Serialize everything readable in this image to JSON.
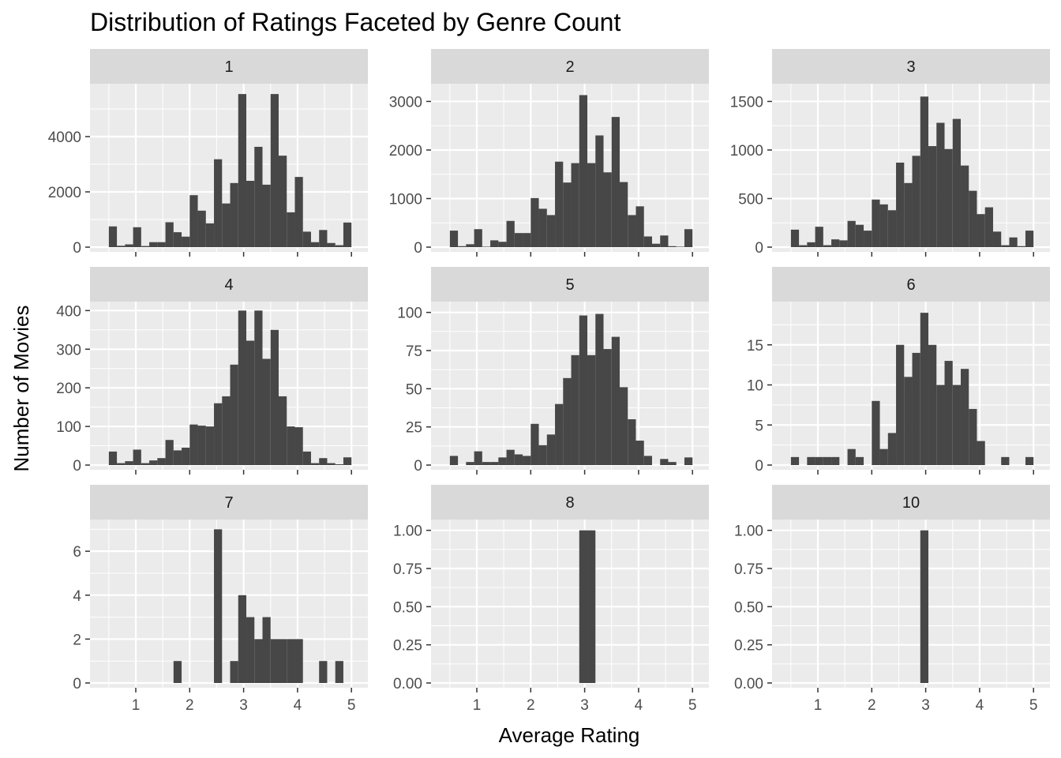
{
  "chart_data": {
    "type": "bar",
    "title": "Distribution of Ratings Faceted by Genre Count",
    "xlabel": "Average Rating",
    "ylabel": "Number of Movies",
    "xlim": [
      0.5,
      5.0
    ],
    "x_ticks": [
      1,
      2,
      3,
      4,
      5
    ],
    "grid": true,
    "facet_variable": "Genre Count",
    "bins": [
      0.5,
      0.65,
      0.8,
      0.95,
      1.1,
      1.25,
      1.4,
      1.55,
      1.7,
      1.85,
      2.0,
      2.15,
      2.3,
      2.45,
      2.6,
      2.75,
      2.9,
      3.05,
      3.2,
      3.35,
      3.5,
      3.65,
      3.8,
      3.95,
      4.1,
      4.25,
      4.4,
      4.55,
      4.7,
      4.85,
      5.0
    ],
    "panels": [
      {
        "label": "1",
        "ylim": [
          0,
          5800
        ],
        "y_ticks": [
          0,
          2000,
          4000
        ],
        "y_tick_labels": [
          "0",
          "2000",
          "4000"
        ],
        "values": [
          750,
          50,
          100,
          720,
          40,
          180,
          180,
          900,
          540,
          380,
          1880,
          1320,
          860,
          3180,
          1580,
          2320,
          5540,
          2400,
          3630,
          2260,
          5540,
          3310,
          1260,
          2540,
          560,
          180,
          620,
          150,
          70,
          890
        ]
      },
      {
        "label": "2",
        "ylim": [
          0,
          3300
        ],
        "y_ticks": [
          0,
          1000,
          2000,
          3000
        ],
        "y_tick_labels": [
          "0",
          "1000",
          "2000",
          "3000"
        ],
        "values": [
          340,
          20,
          60,
          370,
          10,
          140,
          110,
          540,
          290,
          290,
          1010,
          790,
          660,
          1760,
          1330,
          1730,
          3130,
          1730,
          2300,
          1540,
          2680,
          1340,
          660,
          840,
          220,
          70,
          240,
          20,
          10,
          370
        ]
      },
      {
        "label": "3",
        "ylim": [
          0,
          1650
        ],
        "y_ticks": [
          0,
          500,
          1000,
          1500
        ],
        "y_tick_labels": [
          "0",
          "500",
          "1000",
          "1500"
        ],
        "values": [
          180,
          20,
          50,
          210,
          20,
          80,
          70,
          270,
          230,
          170,
          490,
          440,
          380,
          870,
          660,
          940,
          1550,
          1040,
          1280,
          1010,
          1320,
          840,
          580,
          340,
          410,
          160,
          20,
          100,
          10,
          170
        ]
      },
      {
        "label": "4",
        "ylim": [
          0,
          415
        ],
        "y_ticks": [
          0,
          100,
          200,
          300,
          400
        ],
        "y_tick_labels": [
          "0",
          "100",
          "200",
          "300",
          "400"
        ],
        "values": [
          35,
          5,
          10,
          40,
          5,
          12,
          18,
          65,
          38,
          45,
          105,
          102,
          100,
          160,
          178,
          260,
          400,
          322,
          400,
          275,
          350,
          178,
          100,
          98,
          35,
          5,
          18,
          5,
          2,
          20
        ]
      },
      {
        "label": "5",
        "ylim": [
          0,
          105
        ],
        "y_ticks": [
          0,
          25,
          50,
          75,
          100
        ],
        "y_tick_labels": [
          "0",
          "25",
          "50",
          "75",
          "100"
        ],
        "values": [
          6,
          0,
          2,
          9,
          2,
          2,
          5,
          10,
          7,
          6,
          27,
          13,
          20,
          40,
          57,
          72,
          98,
          72,
          99,
          76,
          84,
          51,
          30,
          16,
          6,
          0,
          4,
          2,
          0,
          5
        ]
      },
      {
        "label": "6",
        "ylim": [
          0,
          20
        ],
        "y_ticks": [
          0,
          5,
          10,
          15
        ],
        "y_tick_labels": [
          "0",
          "5",
          "10",
          "15"
        ],
        "values": [
          1,
          0,
          1,
          1,
          1,
          1,
          0,
          2,
          1,
          0,
          8,
          2,
          4,
          15,
          11,
          14,
          19,
          15,
          10,
          13,
          10,
          12,
          7,
          3,
          0,
          0,
          1,
          0,
          0,
          1
        ]
      },
      {
        "label": "7",
        "ylim": [
          0,
          7.3
        ],
        "y_ticks": [
          0,
          2,
          4,
          6
        ],
        "y_tick_labels": [
          "0",
          "2",
          "4",
          "6"
        ],
        "values": [
          0,
          0,
          0,
          0,
          0,
          0,
          0,
          0,
          1,
          0,
          0,
          0,
          0,
          7,
          0,
          1,
          4,
          3,
          2,
          3,
          2,
          2,
          2,
          2,
          0,
          0,
          1,
          0,
          1,
          0
        ]
      },
      {
        "label": "8",
        "ylim": [
          0,
          1.05
        ],
        "y_ticks": [
          0,
          0.25,
          0.5,
          0.75,
          1.0
        ],
        "y_tick_labels": [
          "0.00",
          "0.25",
          "0.50",
          "0.75",
          "1.00"
        ],
        "values": [
          0,
          0,
          0,
          0,
          0,
          0,
          0,
          0,
          0,
          0,
          0,
          0,
          0,
          0,
          0,
          0,
          1,
          1,
          0,
          0,
          0,
          0,
          0,
          0,
          0,
          0,
          0,
          0,
          0,
          0
        ]
      },
      {
        "label": "10",
        "ylim": [
          0,
          1.05
        ],
        "y_ticks": [
          0,
          0.25,
          0.5,
          0.75,
          1.0
        ],
        "y_tick_labels": [
          "0.00",
          "0.25",
          "0.50",
          "0.75",
          "1.00"
        ],
        "values": [
          0,
          0,
          0,
          0,
          0,
          0,
          0,
          0,
          0,
          0,
          0,
          0,
          0,
          0,
          0,
          0,
          1,
          0,
          0,
          0,
          0,
          0,
          0,
          0,
          0,
          0,
          0,
          0,
          0,
          0
        ]
      }
    ]
  },
  "colors": {
    "panel_background": "#ebebeb",
    "strip_background": "#d9d9d9",
    "grid_major": "#ffffff",
    "bar_fill": "#474747"
  }
}
